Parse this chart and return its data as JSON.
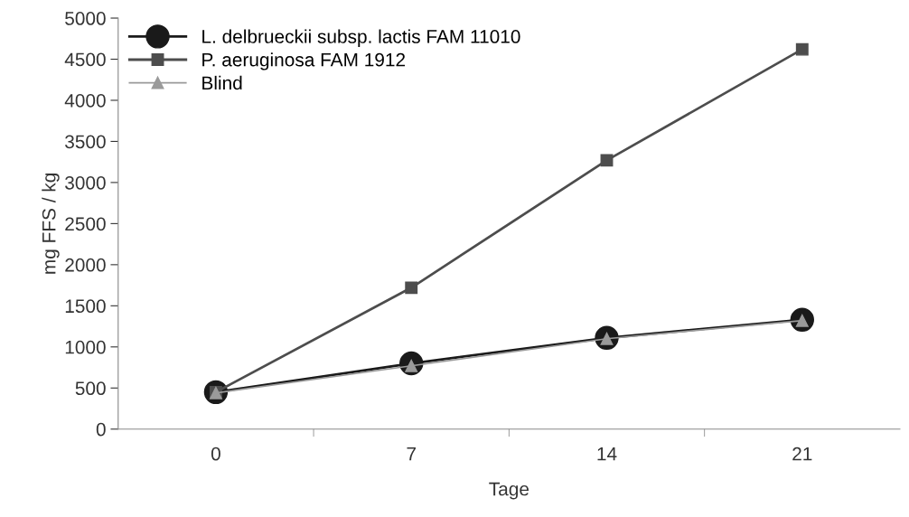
{
  "chart_data": {
    "type": "line",
    "xlabel": "Tage",
    "ylabel": "mg FFS / kg",
    "categories": [
      "0",
      "7",
      "14",
      "21"
    ],
    "ylim": [
      0,
      5000
    ],
    "yticks": [
      0,
      500,
      1000,
      1500,
      2000,
      2500,
      3000,
      3500,
      4000,
      4500,
      5000
    ],
    "grid": false,
    "legend": "top left",
    "series": [
      {
        "name": "L. delbrueckii subsp. lactis FAM 11010",
        "color": "#1a1a1a",
        "marker": "circle",
        "values": [
          450,
          800,
          1110,
          1330
        ]
      },
      {
        "name": "P. aeruginosa FAM 1912",
        "color": "#4d4d4d",
        "marker": "square",
        "values": [
          450,
          1720,
          3270,
          4620
        ]
      },
      {
        "name": "Blind",
        "color": "#9a9a9a",
        "marker": "triangle",
        "values": [
          440,
          770,
          1100,
          1320
        ]
      }
    ]
  }
}
